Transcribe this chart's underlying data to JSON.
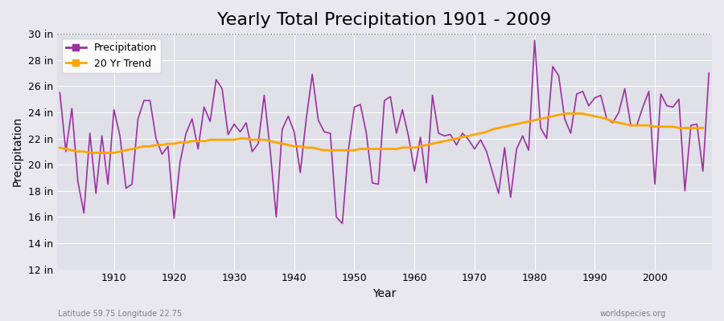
{
  "title": "Yearly Total Precipitation 1901 - 2009",
  "xlabel": "Year",
  "ylabel": "Precipitation",
  "subtitle_left": "Latitude 59.75 Longitude 22.75",
  "subtitle_right": "worldspecies.org",
  "years": [
    1901,
    1902,
    1903,
    1904,
    1905,
    1906,
    1907,
    1908,
    1909,
    1910,
    1911,
    1912,
    1913,
    1914,
    1915,
    1916,
    1917,
    1918,
    1919,
    1920,
    1921,
    1922,
    1923,
    1924,
    1925,
    1926,
    1927,
    1928,
    1929,
    1930,
    1931,
    1932,
    1933,
    1934,
    1935,
    1936,
    1937,
    1938,
    1939,
    1940,
    1941,
    1942,
    1943,
    1944,
    1945,
    1946,
    1947,
    1948,
    1949,
    1950,
    1951,
    1952,
    1953,
    1954,
    1955,
    1956,
    1957,
    1958,
    1959,
    1960,
    1961,
    1962,
    1963,
    1964,
    1965,
    1966,
    1967,
    1968,
    1969,
    1970,
    1971,
    1972,
    1973,
    1974,
    1975,
    1976,
    1977,
    1978,
    1979,
    1980,
    1981,
    1982,
    1983,
    1984,
    1985,
    1986,
    1987,
    1988,
    1989,
    1990,
    1991,
    1992,
    1993,
    1994,
    1995,
    1996,
    1997,
    1998,
    1999,
    2000,
    2001,
    2002,
    2003,
    2004,
    2005,
    2006,
    2007,
    2008,
    2009
  ],
  "precip": [
    25.5,
    21.0,
    24.3,
    18.7,
    16.3,
    22.4,
    17.8,
    22.2,
    18.5,
    24.2,
    22.2,
    18.2,
    18.5,
    23.5,
    24.9,
    24.9,
    22.0,
    20.8,
    21.4,
    15.9,
    20.2,
    22.4,
    23.5,
    21.2,
    24.4,
    23.3,
    26.5,
    25.8,
    22.3,
    23.1,
    22.5,
    23.2,
    21.0,
    21.6,
    25.3,
    21.1,
    16.0,
    22.7,
    23.7,
    22.5,
    19.4,
    23.5,
    26.9,
    23.4,
    22.5,
    22.4,
    16.0,
    15.5,
    21.1,
    24.4,
    24.6,
    22.4,
    18.6,
    18.5,
    24.9,
    25.2,
    22.4,
    24.2,
    22.2,
    19.5,
    22.1,
    18.6,
    25.3,
    22.4,
    22.2,
    22.3,
    21.5,
    22.4,
    21.9,
    21.2,
    21.9,
    21.0,
    19.4,
    17.8,
    21.3,
    17.5,
    21.2,
    22.2,
    21.1,
    29.5,
    22.8,
    22.0,
    27.5,
    26.8,
    23.5,
    22.4,
    25.4,
    25.6,
    24.5,
    25.1,
    25.3,
    23.5,
    23.2,
    24.0,
    25.8,
    23.0,
    23.0,
    24.4,
    25.6,
    18.5,
    25.4,
    24.5,
    24.4,
    25.0,
    18.0,
    23.0,
    23.1,
    19.5,
    27.0
  ],
  "trend": [
    21.3,
    21.2,
    21.1,
    21.0,
    21.0,
    20.9,
    20.9,
    20.9,
    20.9,
    20.9,
    21.0,
    21.1,
    21.2,
    21.3,
    21.4,
    21.4,
    21.5,
    21.5,
    21.6,
    21.6,
    21.7,
    21.7,
    21.8,
    21.8,
    21.8,
    21.9,
    21.9,
    21.9,
    21.9,
    21.9,
    22.0,
    22.0,
    21.9,
    21.9,
    21.9,
    21.8,
    21.7,
    21.6,
    21.5,
    21.4,
    21.4,
    21.3,
    21.3,
    21.2,
    21.1,
    21.1,
    21.1,
    21.1,
    21.1,
    21.1,
    21.2,
    21.2,
    21.2,
    21.2,
    21.2,
    21.2,
    21.2,
    21.3,
    21.3,
    21.3,
    21.4,
    21.5,
    21.6,
    21.7,
    21.8,
    21.9,
    22.0,
    22.1,
    22.2,
    22.3,
    22.4,
    22.5,
    22.7,
    22.8,
    22.9,
    23.0,
    23.1,
    23.2,
    23.3,
    23.4,
    23.5,
    23.6,
    23.7,
    23.8,
    23.9,
    23.9,
    23.9,
    23.9,
    23.8,
    23.7,
    23.6,
    23.5,
    23.3,
    23.2,
    23.1,
    23.0,
    23.0,
    23.0,
    23.0,
    22.9,
    22.9,
    22.9,
    22.9,
    22.8,
    22.8,
    22.8,
    22.8,
    22.8,
    null
  ],
  "precip_color": "#9B30A0",
  "trend_color": "#FFA500",
  "bg_color": "#E8E8EE",
  "plot_bg_color": "#E0E0E8",
  "ylim": [
    12,
    30
  ],
  "yticks": [
    12,
    14,
    16,
    18,
    20,
    22,
    24,
    26,
    28,
    30
  ],
  "ytick_labels": [
    "12 in",
    "14 in",
    "16 in",
    "18 in",
    "20 in",
    "22 in",
    "24 in",
    "26 in",
    "28 in",
    "30 in"
  ],
  "xticks": [
    1910,
    1920,
    1930,
    1940,
    1950,
    1960,
    1970,
    1980,
    1990,
    2000
  ],
  "title_fontsize": 16,
  "label_fontsize": 10,
  "tick_fontsize": 9
}
